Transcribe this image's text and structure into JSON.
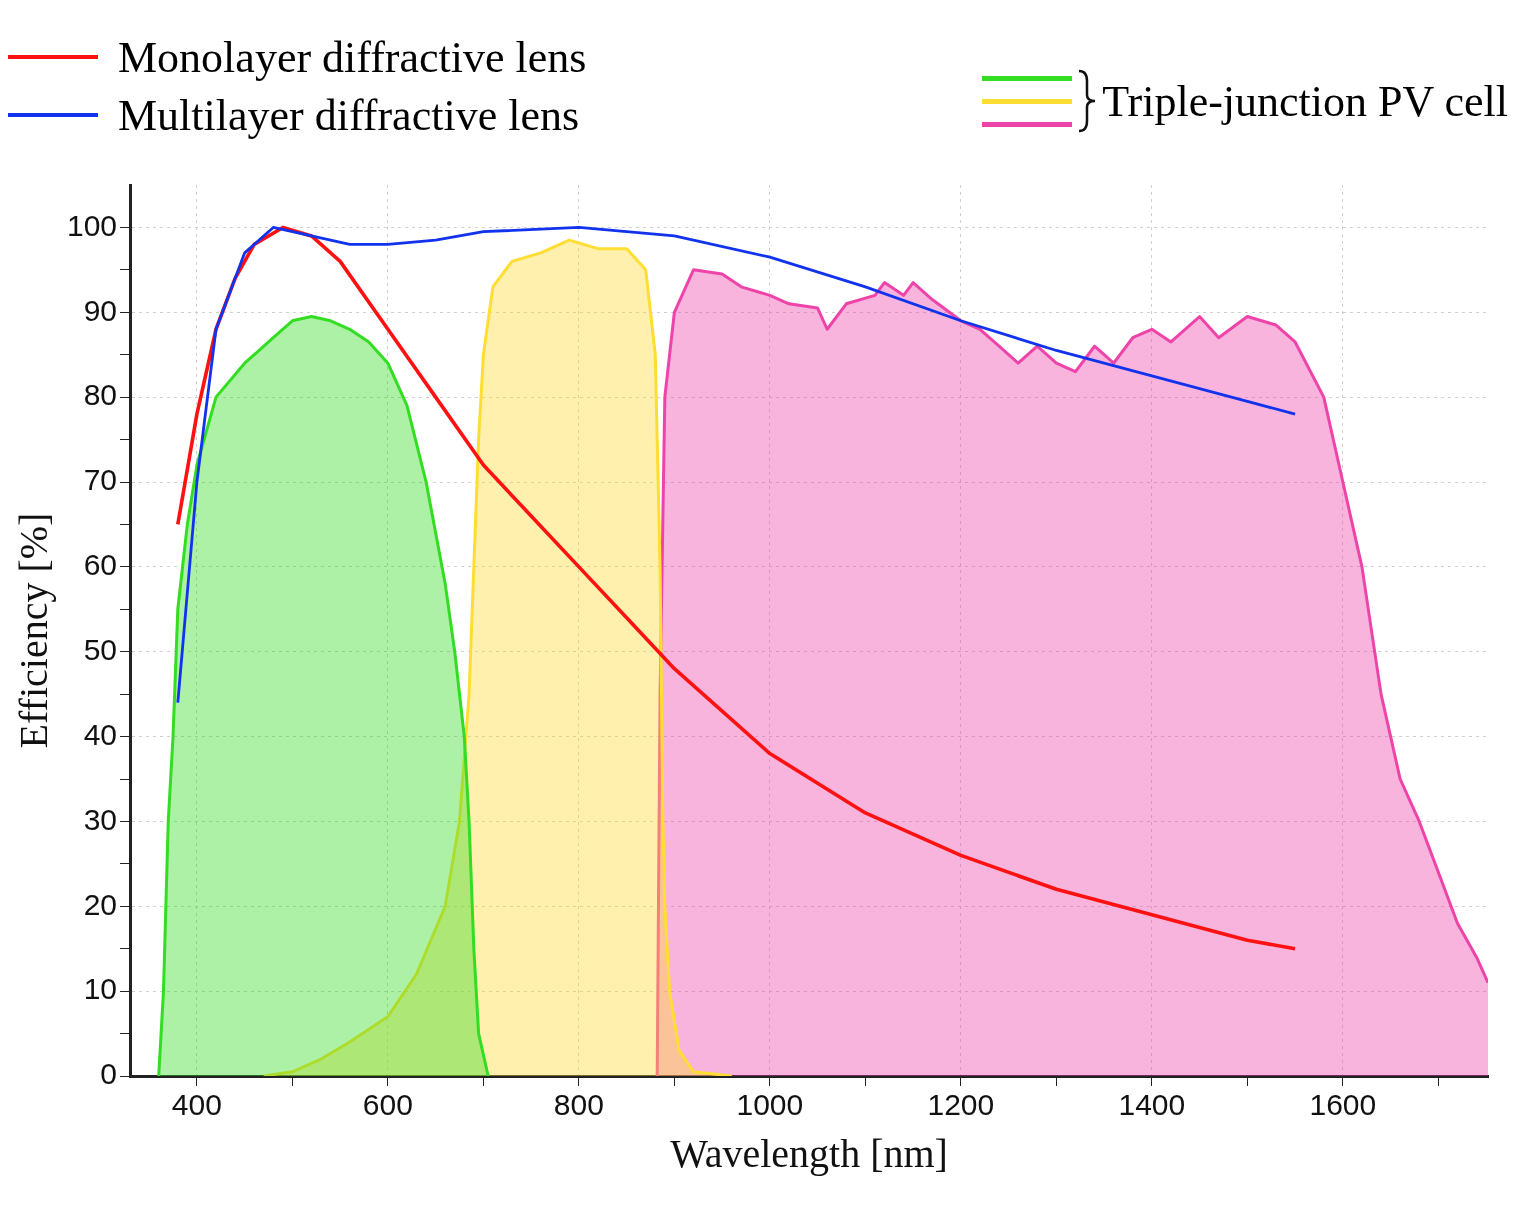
{
  "chart_data": {
    "type": "line",
    "legend_title": "Triple-junction PV cell",
    "xlabel": "Wavelength [nm]",
    "ylabel": "Efficiency [%]",
    "legend": "top",
    "grid": true,
    "xlim": [
      330,
      1752
    ],
    "ylim": [
      0,
      105
    ],
    "xticks": [
      400,
      {
        "value": 500,
        "label": null
      },
      600,
      {
        "value": 700,
        "label": null
      },
      800,
      {
        "value": 900,
        "label": null
      },
      1000,
      {
        "value": 1100,
        "label": null
      },
      1200,
      {
        "value": 1300,
        "label": null
      },
      1400,
      {
        "value": 1500,
        "label": null
      },
      1600,
      {
        "value": 1700,
        "label": null
      }
    ],
    "yticks": [
      0,
      {
        "value": 5,
        "label": null
      },
      10,
      {
        "value": 15,
        "label": null
      },
      20,
      {
        "value": 25,
        "label": null
      },
      30,
      {
        "value": 35,
        "label": null
      },
      40,
      {
        "value": 45,
        "label": null
      },
      50,
      {
        "value": 55,
        "label": null
      },
      60,
      {
        "value": 65,
        "label": null
      },
      70,
      {
        "value": 75,
        "label": null
      },
      80,
      {
        "value": 85,
        "label": null
      },
      90,
      {
        "value": 95,
        "label": null
      },
      100
    ],
    "series": [
      {
        "type": "area",
        "color": "#33dd22",
        "x": [
          360,
          365,
          370,
          375,
          380,
          390,
          400,
          420,
          450,
          480,
          500,
          520,
          540,
          560,
          580,
          600,
          620,
          640,
          660,
          670,
          680,
          685,
          690,
          695,
          705
        ],
        "values": [
          0,
          10,
          30,
          40,
          55,
          65,
          72,
          80,
          84,
          87,
          89,
          89.5,
          89,
          88,
          86.5,
          84,
          79,
          70,
          58,
          50,
          40,
          30,
          15,
          5,
          0
        ]
      },
      {
        "type": "area",
        "color": "#ffdd33",
        "x": [
          470,
          500,
          530,
          560,
          600,
          630,
          660,
          675,
          685,
          690,
          695,
          700,
          710,
          730,
          760,
          790,
          820,
          850,
          870,
          880,
          885,
          888,
          890,
          895,
          905,
          920,
          960
        ],
        "values": [
          0,
          0.5,
          2,
          4,
          7,
          12,
          20,
          30,
          45,
          60,
          75,
          85,
          93,
          96,
          97,
          98.5,
          97.5,
          97.5,
          95,
          85,
          60,
          30,
          20,
          10,
          3,
          0.5,
          0
        ]
      },
      {
        "type": "area",
        "color": "#ee44aa",
        "x": [
          882,
          885,
          890,
          900,
          920,
          950,
          970,
          1000,
          1020,
          1050,
          1060,
          1080,
          1110,
          1120,
          1140,
          1150,
          1170,
          1200,
          1220,
          1240,
          1260,
          1280,
          1300,
          1320,
          1340,
          1360,
          1380,
          1400,
          1420,
          1450,
          1470,
          1500,
          1530,
          1550,
          1580,
          1600,
          1620,
          1640,
          1660,
          1680,
          1700,
          1720,
          1740,
          1752
        ],
        "values": [
          0,
          45,
          80,
          90,
          95,
          94.5,
          93,
          92,
          91,
          90.5,
          88,
          91,
          92,
          93.5,
          92,
          93.5,
          91.5,
          89,
          88,
          86,
          84,
          86,
          84,
          83,
          86,
          84,
          87,
          88,
          86.5,
          89.5,
          87,
          89.5,
          88.5,
          86.5,
          80,
          70,
          60,
          45,
          35,
          30,
          24,
          18,
          14,
          11
        ]
      },
      {
        "name": "Monolayer diffractive lens",
        "type": "line",
        "color": "#ff1111",
        "x": [
          380,
          400,
          420,
          440,
          460,
          490,
          520,
          550,
          600,
          650,
          700,
          750,
          800,
          850,
          900,
          1000,
          1100,
          1200,
          1300,
          1400,
          1500,
          1550
        ],
        "values": [
          65,
          78,
          88,
          94,
          98,
          100,
          99,
          96,
          88,
          80,
          72,
          66,
          60,
          54,
          48,
          38,
          31,
          26,
          22,
          19,
          16,
          15
        ]
      },
      {
        "name": "Multilayer diffractive lens",
        "type": "line",
        "color": "#1133ee",
        "x": [
          380,
          400,
          420,
          450,
          480,
          520,
          560,
          600,
          650,
          700,
          800,
          900,
          1000,
          1100,
          1200,
          1300,
          1400,
          1500,
          1550
        ],
        "values": [
          44,
          70,
          88,
          97,
          100,
          99,
          98,
          98,
          98.5,
          99.5,
          100,
          99,
          96.5,
          93,
          89,
          85.5,
          82.5,
          79.5,
          78
        ]
      }
    ]
  }
}
